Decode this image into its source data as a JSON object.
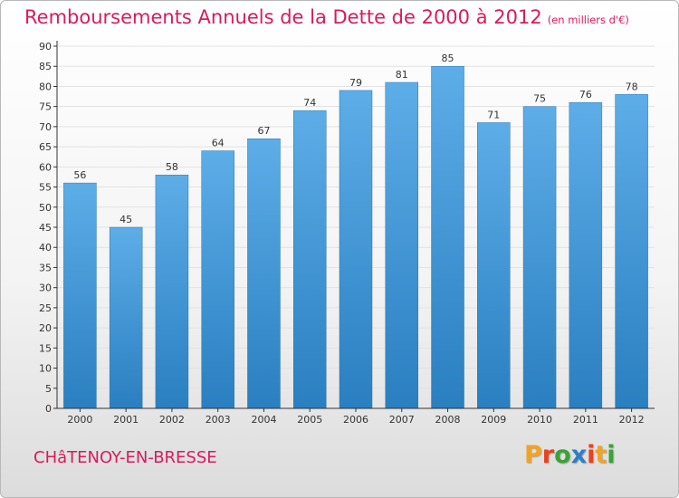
{
  "header": {
    "title": "Remboursements Annuels de la Dette de 2000 à 2012",
    "subtitle": "(en milliers d'€)"
  },
  "footer": {
    "city": "CHâTENOY-EN-BRESSE",
    "logo": [
      "P",
      "r",
      "o",
      "x",
      "i",
      "t",
      "i"
    ]
  },
  "colors": {
    "title": "#d81b5e",
    "bar_top": "#5dade8",
    "bar_bottom": "#2a7fc0",
    "grid": "#e2e2e2",
    "axis": "#333333",
    "logo": [
      "#f3a321",
      "#e8421f",
      "#3aa336",
      "#2d7fc3",
      "#e8421f",
      "#f3a321",
      "#3aa336"
    ]
  },
  "chart_data": {
    "type": "bar",
    "title": "Remboursements Annuels de la Dette de 2000 à 2012",
    "subtitle": "(en milliers d'€)",
    "categories": [
      "2000",
      "2001",
      "2002",
      "2003",
      "2004",
      "2005",
      "2006",
      "2007",
      "2008",
      "2009",
      "2010",
      "2011",
      "2012"
    ],
    "values": [
      56,
      45,
      58,
      64,
      67,
      74,
      79,
      81,
      85,
      71,
      75,
      76,
      78
    ],
    "ylim": [
      0,
      90
    ],
    "yticks": [
      0,
      5,
      10,
      15,
      20,
      25,
      30,
      35,
      40,
      45,
      50,
      55,
      60,
      65,
      70,
      75,
      80,
      85,
      90
    ],
    "grid": true,
    "xlabel": "",
    "ylabel": ""
  }
}
